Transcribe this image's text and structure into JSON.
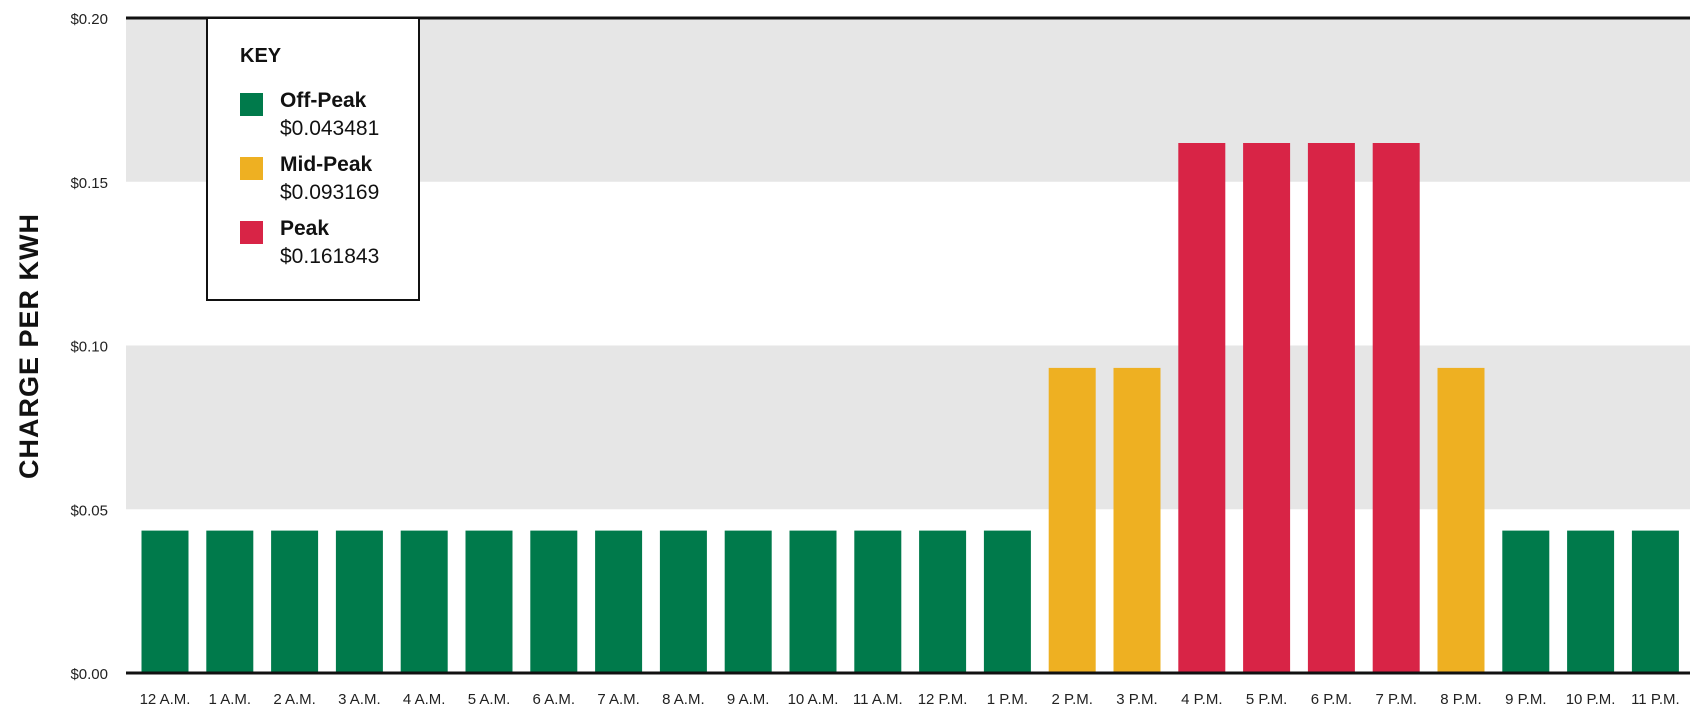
{
  "chart_data": {
    "type": "bar",
    "title": "",
    "ylabel": "CHARGE PER KWH",
    "xlabel": "",
    "ylim": [
      0,
      0.2
    ],
    "yticks": [
      "$0.00",
      "$0.05",
      "$0.10",
      "$0.15",
      "$0.20"
    ],
    "categories": [
      "12 A.M.",
      "1 A.M.",
      "2 A.M.",
      "3 A.M.",
      "4 A.M.",
      "5 A.M.",
      "6 A.M.",
      "7 A.M.",
      "8 A.M.",
      "9 A.M.",
      "10 A.M.",
      "11 A.M.",
      "12 P.M.",
      "1 P.M.",
      "2 P.M.",
      "3 P.M.",
      "4 P.M.",
      "5 P.M.",
      "6 P.M.",
      "7 P.M.",
      "8 P.M.",
      "9 P.M.",
      "10 P.M.",
      "11 P.M."
    ],
    "values": [
      0.043481,
      0.043481,
      0.043481,
      0.043481,
      0.043481,
      0.043481,
      0.043481,
      0.043481,
      0.043481,
      0.043481,
      0.043481,
      0.043481,
      0.043481,
      0.043481,
      0.093169,
      0.093169,
      0.161843,
      0.161843,
      0.161843,
      0.161843,
      0.093169,
      0.043481,
      0.043481,
      0.043481
    ],
    "bar_tier": [
      "off",
      "off",
      "off",
      "off",
      "off",
      "off",
      "off",
      "off",
      "off",
      "off",
      "off",
      "off",
      "off",
      "off",
      "mid",
      "mid",
      "peak",
      "peak",
      "peak",
      "peak",
      "mid",
      "off",
      "off",
      "off"
    ],
    "grid": "alternating horizontal bands",
    "legend": {
      "position": "top-left",
      "title": "KEY",
      "items": [
        {
          "key": "off",
          "name": "Off-Peak",
          "rate": "$0.043481",
          "color": "#007a4b"
        },
        {
          "key": "mid",
          "name": "Mid-Peak",
          "rate": "$0.093169",
          "color": "#eeb022"
        },
        {
          "key": "peak",
          "name": "Peak",
          "rate": "$0.161843",
          "color": "#d82446"
        }
      ]
    },
    "band_color": "#e6e6e6"
  }
}
